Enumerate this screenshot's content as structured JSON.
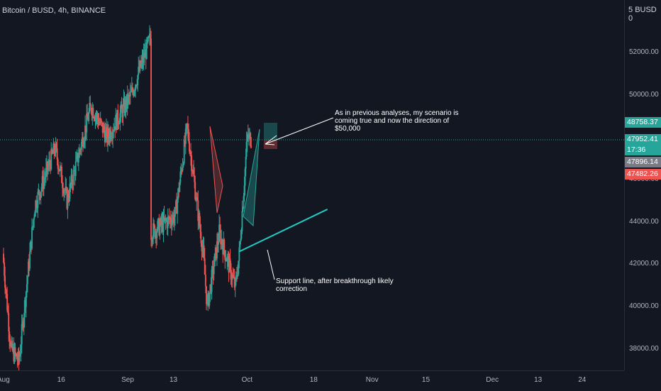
{
  "header": {
    "symbol_title": "Bitcoin / BUSD, 4h, BINANCE",
    "currency": "BUSD"
  },
  "annotations": {
    "top_note": [
      "As in previous analyses, my scenario is",
      "coming true and now the direction of",
      "$50,000"
    ],
    "bottom_note": [
      "Support line, after breakthrough likely",
      "correction"
    ]
  },
  "price_tags": [
    {
      "text": "48758.37",
      "color": "#26a69a"
    },
    {
      "text": "47952.41",
      "color": "#26a69a"
    },
    {
      "text": "17:36",
      "color": "#26a69a"
    },
    {
      "text": "47896.14",
      "color": "#787b86"
    },
    {
      "text": "47482.26",
      "color": "#ef5350"
    }
  ],
  "colors": {
    "up": "#26a69a",
    "down": "#ef5350",
    "support_line": "#22c9c1",
    "background": "#131722"
  },
  "chart_data": {
    "type": "candlestick",
    "title": "Bitcoin / BUSD, 4h, BINANCE",
    "y_axis": {
      "ticks": [
        38000,
        40000,
        42000,
        44000,
        46000,
        48000,
        50000,
        52000
      ],
      "tick_labels": [
        "38000.00",
        "40000.00",
        "42000.00",
        "44000.00",
        "46000.00",
        "48000.00",
        "50000.00",
        "52000.00"
      ],
      "ylim": [
        37300,
        54500
      ],
      "position": "right"
    },
    "x_axis": {
      "tick_labels": [
        "Aug",
        "16",
        "Sep",
        "13",
        "Oct",
        "18",
        "Nov",
        "15",
        "Dec",
        "13",
        "24"
      ]
    },
    "current_price": 47952.41,
    "swing_points": [
      {
        "date": "2021-08-01",
        "price": 42500
      },
      {
        "date": "2021-08-03",
        "price": 38000
      },
      {
        "date": "2021-08-05",
        "price": 37400
      },
      {
        "date": "2021-08-09",
        "price": 44800
      },
      {
        "date": "2021-08-14",
        "price": 47500
      },
      {
        "date": "2021-08-17",
        "price": 45000
      },
      {
        "date": "2021-08-23",
        "price": 49500
      },
      {
        "date": "2021-08-27",
        "price": 48000
      },
      {
        "date": "2021-09-02",
        "price": 50000
      },
      {
        "date": "2021-09-07",
        "price": 52800
      },
      {
        "date": "2021-09-07",
        "price": 43500
      },
      {
        "date": "2021-09-13",
        "price": 44300
      },
      {
        "date": "2021-09-16",
        "price": 48500
      },
      {
        "date": "2021-09-20",
        "price": 42500
      },
      {
        "date": "2021-09-21",
        "price": 40000
      },
      {
        "date": "2021-09-24",
        "price": 43500
      },
      {
        "date": "2021-09-28",
        "price": 40900
      },
      {
        "date": "2021-09-29",
        "price": 42500
      },
      {
        "date": "2021-10-01",
        "price": 48000
      },
      {
        "date": "2021-10-02",
        "price": 47950
      }
    ],
    "support_line": {
      "start": {
        "date": "2021-09-29",
        "price": 42600
      },
      "end": {
        "date": "2021-10-21",
        "price": 44600
      }
    }
  }
}
